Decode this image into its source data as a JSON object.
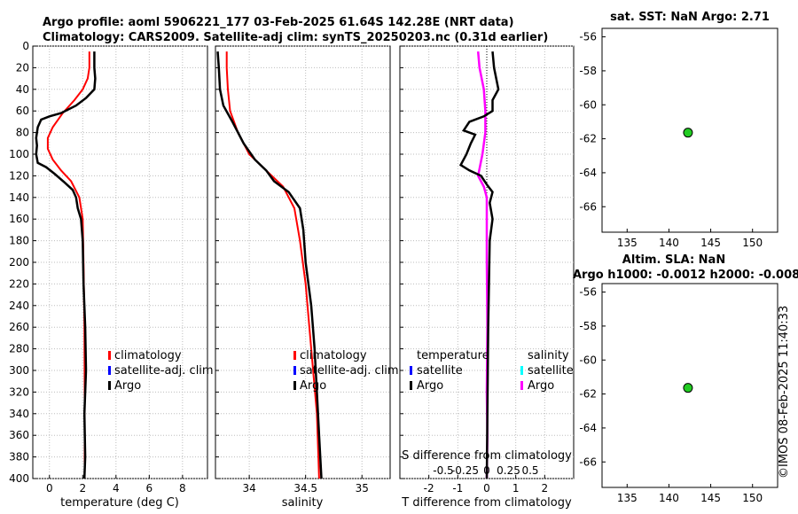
{
  "title": {
    "line1": "Argo profile: aoml 5906221_177 03-Feb-2025 61.64S 142.28E (NRT data)",
    "line2": "Climatology: CARS2009. Satellite-adj clim: synTS_20250203.nc (0.31d earlier)"
  },
  "timestamp": "©IMOS 08-Feb-2025 11:40:33",
  "colors": {
    "climatology": "#ff0000",
    "satellite": "#0000ff",
    "argo": "#000000",
    "satellite_s": "#00ffff",
    "argo_s": "#ff00ff",
    "marker": "#22cc22"
  },
  "chart_data": [
    {
      "id": "temperature",
      "type": "line",
      "xlabel": "temperature (deg C)",
      "ylabel": "",
      "xlim": [
        -1,
        9.5
      ],
      "ylim": [
        400,
        0
      ],
      "xticks": [
        0,
        2,
        4,
        6,
        8
      ],
      "xtick_labels": [
        "0",
        "2",
        "4",
        "6",
        "8"
      ],
      "yticks": [
        0,
        20,
        40,
        60,
        80,
        100,
        120,
        140,
        160,
        180,
        200,
        220,
        240,
        260,
        280,
        300,
        320,
        340,
        360,
        380,
        400
      ],
      "ytick_labels": [
        "0",
        "20",
        "40",
        "60",
        "80",
        "100",
        "120",
        "140",
        "160",
        "180",
        "200",
        "220",
        "240",
        "260",
        "280",
        "300",
        "320",
        "340",
        "360",
        "380",
        "400"
      ],
      "legend": [
        "climatology",
        "satellite-adj. clim",
        "Argo"
      ],
      "legend_position": "lower-right",
      "series": [
        {
          "name": "climatology",
          "points": [
            [
              2.4,
              5
            ],
            [
              2.4,
              20
            ],
            [
              2.3,
              30
            ],
            [
              2.0,
              40
            ],
            [
              1.5,
              50
            ],
            [
              0.8,
              62
            ],
            [
              0.2,
              75
            ],
            [
              -0.1,
              85
            ],
            [
              -0.1,
              95
            ],
            [
              0.2,
              105
            ],
            [
              0.7,
              115
            ],
            [
              1.3,
              125
            ],
            [
              1.8,
              140
            ],
            [
              2.0,
              160
            ],
            [
              2.05,
              200
            ],
            [
              2.1,
              260
            ],
            [
              2.12,
              320
            ],
            [
              2.12,
              400
            ]
          ]
        },
        {
          "name": "Argo",
          "points": [
            [
              2.7,
              5
            ],
            [
              2.7,
              20
            ],
            [
              2.75,
              30
            ],
            [
              2.7,
              40
            ],
            [
              2.2,
              48
            ],
            [
              1.6,
              55
            ],
            [
              0.7,
              62
            ],
            [
              0.0,
              65
            ],
            [
              -0.5,
              68
            ],
            [
              -0.7,
              75
            ],
            [
              -0.8,
              85
            ],
            [
              -0.75,
              92
            ],
            [
              -0.8,
              100
            ],
            [
              -0.7,
              108
            ],
            [
              -0.2,
              112
            ],
            [
              0.3,
              118
            ],
            [
              0.9,
              126
            ],
            [
              1.4,
              133
            ],
            [
              1.6,
              140
            ],
            [
              1.7,
              150
            ],
            [
              1.9,
              160
            ],
            [
              2.0,
              180
            ],
            [
              2.05,
              220
            ],
            [
              2.15,
              260
            ],
            [
              2.2,
              300
            ],
            [
              2.1,
              340
            ],
            [
              2.15,
              380
            ],
            [
              2.1,
              400
            ]
          ]
        }
      ]
    },
    {
      "id": "salinity",
      "type": "line",
      "xlabel": "salinity",
      "xlim": [
        33.7,
        35.25
      ],
      "ylim": [
        400,
        0
      ],
      "xticks": [
        34,
        34.5,
        35
      ],
      "xtick_labels": [
        "34",
        "34.5",
        "35"
      ],
      "legend": [
        "climatology",
        "satellite-adj. clim",
        "Argo"
      ],
      "legend_position": "lower-right",
      "series": [
        {
          "name": "climatology",
          "points": [
            [
              33.8,
              5
            ],
            [
              33.8,
              20
            ],
            [
              33.81,
              40
            ],
            [
              33.83,
              60
            ],
            [
              33.9,
              80
            ],
            [
              34.0,
              100
            ],
            [
              34.15,
              115
            ],
            [
              34.3,
              130
            ],
            [
              34.4,
              150
            ],
            [
              34.45,
              180
            ],
            [
              34.5,
              220
            ],
            [
              34.55,
              280
            ],
            [
              34.6,
              340
            ],
            [
              34.62,
              400
            ]
          ]
        },
        {
          "name": "Argo",
          "points": [
            [
              33.72,
              5
            ],
            [
              33.73,
              20
            ],
            [
              33.74,
              40
            ],
            [
              33.77,
              55
            ],
            [
              33.85,
              70
            ],
            [
              33.95,
              90
            ],
            [
              34.05,
              105
            ],
            [
              34.15,
              115
            ],
            [
              34.22,
              125
            ],
            [
              34.35,
              135
            ],
            [
              34.45,
              150
            ],
            [
              34.48,
              170
            ],
            [
              34.5,
              200
            ],
            [
              34.55,
              240
            ],
            [
              34.58,
              280
            ],
            [
              34.6,
              320
            ],
            [
              34.62,
              360
            ],
            [
              34.64,
              400
            ]
          ]
        }
      ]
    },
    {
      "id": "difference",
      "type": "line",
      "xlabel": "T difference from climatology",
      "top_label": "S difference from climatology",
      "xlim": [
        -3,
        3
      ],
      "ylim": [
        400,
        0
      ],
      "xticks": [
        -2,
        -1,
        0,
        1,
        2
      ],
      "xtick_labels": [
        "-2",
        "-1",
        "0",
        "1",
        "2"
      ],
      "top_xticks": [
        -1.5,
        -0.75,
        0,
        0.75,
        1.5
      ],
      "top_xtick_labels": [
        "-0.5",
        "-0.25",
        "0",
        "0.25",
        "0.5"
      ],
      "legend_t": [
        "temperature",
        "satellite",
        "Argo"
      ],
      "legend_s": [
        "salinity",
        "satellite",
        "Argo"
      ],
      "series": [
        {
          "name": "Argo T difference",
          "points": [
            [
              0.2,
              5
            ],
            [
              0.25,
              20
            ],
            [
              0.4,
              40
            ],
            [
              0.2,
              50
            ],
            [
              0.2,
              60
            ],
            [
              -0.1,
              65
            ],
            [
              -0.6,
              70
            ],
            [
              -0.8,
              78
            ],
            [
              -0.4,
              82
            ],
            [
              -0.55,
              90
            ],
            [
              -0.7,
              100
            ],
            [
              -0.9,
              110
            ],
            [
              -0.6,
              115
            ],
            [
              -0.2,
              120
            ],
            [
              0.0,
              128
            ],
            [
              0.2,
              135
            ],
            [
              0.1,
              145
            ],
            [
              0.2,
              160
            ],
            [
              0.1,
              180
            ],
            [
              0.05,
              260
            ],
            [
              0.02,
              340
            ],
            [
              0.0,
              400
            ]
          ]
        },
        {
          "name": "Argo S difference",
          "points": [
            [
              -0.3,
              5
            ],
            [
              -0.25,
              20
            ],
            [
              -0.1,
              40
            ],
            [
              -0.05,
              60
            ],
            [
              -0.05,
              80
            ],
            [
              -0.15,
              100
            ],
            [
              -0.3,
              120
            ],
            [
              -0.1,
              130
            ],
            [
              0.0,
              140
            ],
            [
              0.0,
              200
            ],
            [
              0.02,
              260
            ],
            [
              0.0,
              320
            ],
            [
              0.02,
              360
            ],
            [
              0.0,
              400
            ]
          ]
        }
      ]
    },
    {
      "id": "sst-map",
      "type": "scatter",
      "title": "sat. SST: NaN Argo: 2.71",
      "xlim": [
        132,
        153
      ],
      "ylim": [
        -67.5,
        -55.5
      ],
      "xticks": [
        135,
        140,
        145,
        150
      ],
      "xtick_labels": [
        "135",
        "140",
        "145",
        "150"
      ],
      "yticks": [
        -56,
        -58,
        -60,
        -62,
        -64,
        -66
      ],
      "ytick_labels": [
        "-56",
        "-58",
        "-60",
        "-62",
        "-64",
        "-66"
      ],
      "points": [
        [
          142.28,
          -61.64
        ]
      ]
    },
    {
      "id": "sla-map",
      "type": "scatter",
      "title": "Altim. SLA: NaN",
      "subtitle": "Argo h1000: -0.0012 h2000: -0.008",
      "xlim": [
        132,
        153
      ],
      "ylim": [
        -67.5,
        -55.5
      ],
      "xticks": [
        135,
        140,
        145,
        150
      ],
      "xtick_labels": [
        "135",
        "140",
        "145",
        "150"
      ],
      "yticks": [
        -56,
        -58,
        -60,
        -62,
        -64,
        -66
      ],
      "ytick_labels": [
        "-56",
        "-58",
        "-60",
        "-62",
        "-64",
        "-66"
      ],
      "points": [
        [
          142.28,
          -61.64
        ]
      ]
    }
  ]
}
